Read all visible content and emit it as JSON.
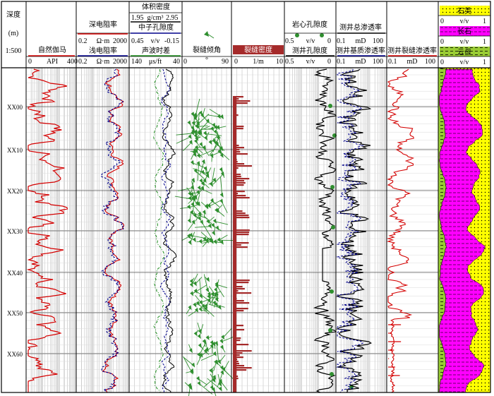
{
  "chart_data": {
    "type": "line",
    "title": "",
    "depth_track": {
      "title_line1": "深度",
      "title_line2": "(m)",
      "scale": "1:500"
    },
    "depth_labels": [
      "XX00",
      "XX10",
      "XX20",
      "XX30",
      "XX40",
      "XX50",
      "XX60"
    ],
    "tracks": [
      {
        "id": "gr",
        "curves": [
          {
            "name": "自然伽马",
            "unit": "API",
            "min": "0",
            "max": "400",
            "color": "#d40000"
          }
        ]
      },
      {
        "id": "res",
        "curves": [
          {
            "name": "深电阻率",
            "unit": "Ω·m",
            "min": "0.2",
            "max": "2000",
            "color": "#d40000"
          },
          {
            "name": "浅电阻率",
            "unit": "Ω·m",
            "min": "0.2",
            "max": "2000",
            "color": "#00008b"
          }
        ]
      },
      {
        "id": "poro",
        "curves": [
          {
            "name": "体积密度",
            "unit": "g/cm³",
            "min": "1.95",
            "max": "2.95",
            "color": "#000000"
          },
          {
            "name": "中子孔隙度",
            "unit": "v/v",
            "min": "0.45",
            "max": "-0.15",
            "color": "#00008b"
          },
          {
            "name": "声波时差",
            "unit": "μs/ft",
            "min": "140",
            "max": "40",
            "color": "#1a8a1a"
          }
        ]
      },
      {
        "id": "dip",
        "curves": [
          {
            "name": "裂缝倾角",
            "unit": "°",
            "min": "0",
            "max": "90",
            "color": "#2f8f2f"
          }
        ]
      },
      {
        "id": "fden",
        "curves": [
          {
            "name": "裂缝密度",
            "unit": "1/m",
            "min": "0",
            "max": "10",
            "color": "#a52a2a"
          }
        ]
      },
      {
        "id": "phi",
        "curves": [
          {
            "name": "岩心孔隙度",
            "unit": "v/v",
            "min": "0.5",
            "max": "0",
            "color": "#2f8f2f"
          },
          {
            "name": "测井孔隙度",
            "unit": "v/v",
            "min": "0.5",
            "max": "0",
            "color": "#000000"
          }
        ]
      },
      {
        "id": "perm",
        "curves": [
          {
            "name": "测井总渗透率",
            "unit": "mD",
            "min": "0.1",
            "max": "100",
            "color": "#000000"
          },
          {
            "name": "测井基质渗透率",
            "unit": "mD",
            "min": "0.1",
            "max": "100",
            "color": "#00008b"
          }
        ]
      },
      {
        "id": "fperm",
        "curves": [
          {
            "name": "测井裂缝渗透率",
            "unit": "mD",
            "min": "0.1",
            "max": "100",
            "color": "#d40000"
          }
        ]
      },
      {
        "id": "lith",
        "curves": [
          {
            "name": "石英",
            "unit": "v/v",
            "min": "0",
            "max": "1",
            "color": "#ffff00"
          },
          {
            "name": "长石",
            "unit": "v/v",
            "min": "0",
            "max": "1",
            "color": "#ff00ff"
          },
          {
            "name": "云母",
            "unit": "v/v",
            "min": "0",
            "max": "1",
            "color": "#99cc33"
          }
        ]
      }
    ],
    "colors": {
      "gr": "#d40000",
      "deep": "#d40000",
      "shallow": "#00008b",
      "den": "#000000",
      "ac": "#1a8a1a",
      "dip": "#2f8f2f",
      "fden": "#a52a2a",
      "quartz": "#ffff00",
      "feldspar": "#ff00ff",
      "mica": "#99cc33"
    }
  }
}
